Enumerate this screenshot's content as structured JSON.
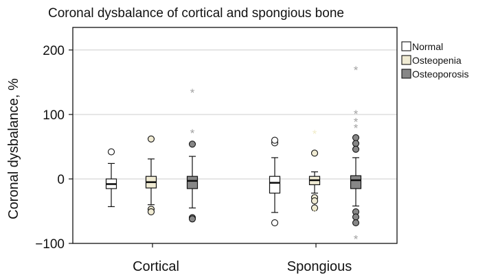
{
  "chart_data": {
    "type": "box",
    "title": "Coronal dysbalance of cortical and spongious bone",
    "xlabel": "",
    "ylabel": "Coronal dysbalance, %",
    "ylim": [
      -100,
      235
    ],
    "yticks": [
      -100,
      0,
      100,
      200
    ],
    "grid": "horizontal at y ticks",
    "legend_position": "right",
    "categories": [
      "Cortical",
      "Spongious"
    ],
    "series": [
      {
        "name": "Normal",
        "color": "#ffffff",
        "star_color": "#999999",
        "boxes": [
          {
            "category": "Cortical",
            "whisker_low": -43,
            "q1": -15,
            "median": -8,
            "q3": 0,
            "whisker_high": 24,
            "outliers": [
              42
            ],
            "extremes": []
          },
          {
            "category": "Spongious",
            "whisker_low": -52,
            "q1": -22,
            "median": -6,
            "q3": 4,
            "whisker_high": 33,
            "outliers": [
              56,
              60,
              -68
            ],
            "extremes": []
          }
        ]
      },
      {
        "name": "Osteopenia",
        "color": "#f0ebd3",
        "star_color": "#f1ecc9",
        "boxes": [
          {
            "category": "Cortical",
            "whisker_low": -40,
            "q1": -14,
            "median": -5,
            "q3": 4,
            "whisker_high": 31,
            "outliers": [
              62,
              -47,
              -51
            ],
            "extremes": []
          },
          {
            "category": "Spongious",
            "whisker_low": -22,
            "q1": -9,
            "median": -2,
            "q3": 4,
            "whisker_high": 11,
            "outliers": [
              40,
              -29,
              -34,
              -45
            ],
            "extremes": [
              70,
              -50
            ]
          }
        ]
      },
      {
        "name": "Osteoporosis",
        "color": "#878787",
        "star_color": "#a3a3a3",
        "boxes": [
          {
            "category": "Cortical",
            "whisker_low": -45,
            "q1": -15,
            "median": -3,
            "q3": 4,
            "whisker_high": 35,
            "outliers": [
              54,
              -60,
              -62
            ],
            "extremes": [
              134,
              71
            ]
          },
          {
            "category": "Spongious",
            "whisker_low": -42,
            "q1": -15,
            "median": -2,
            "q3": 5,
            "whisker_high": 33,
            "outliers": [
              64,
              55,
              46,
              -51,
              -59,
              -68
            ],
            "extremes": [
              169,
              101,
              89,
              79,
              -93
            ]
          }
        ]
      }
    ]
  }
}
